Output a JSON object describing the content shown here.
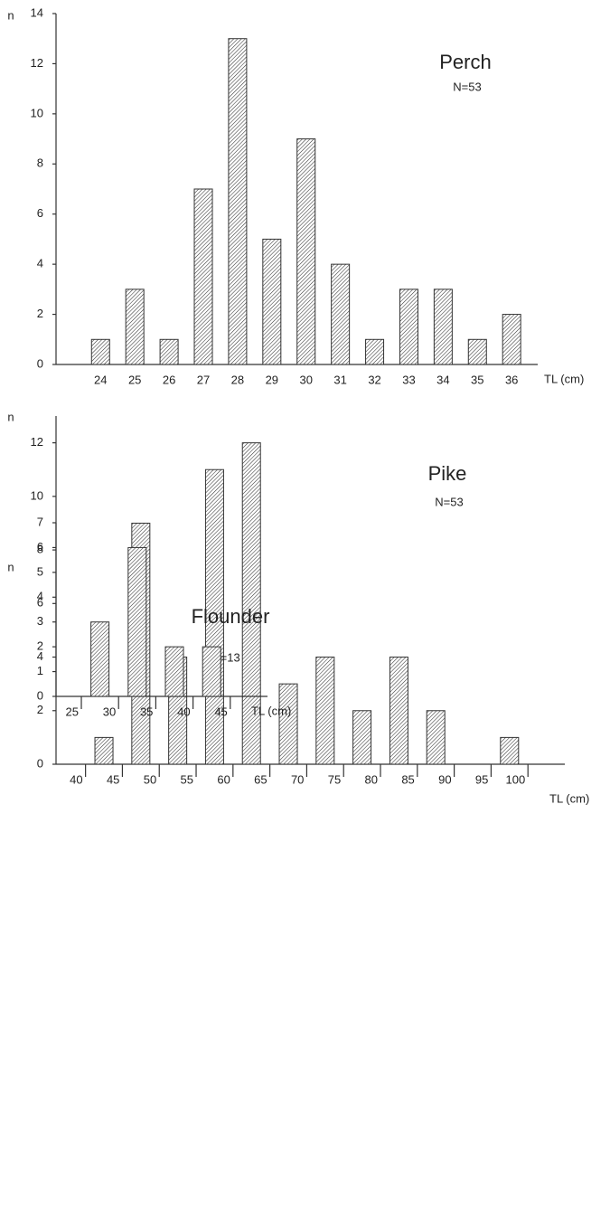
{
  "chart_data": [
    {
      "type": "bar",
      "title": "Perch",
      "subtitle": "N=53",
      "y_label": "n",
      "x_label": "TL (cm)",
      "categories": [
        "24",
        "25",
        "26",
        "27",
        "28",
        "29",
        "30",
        "31",
        "32",
        "33",
        "34",
        "35",
        "36"
      ],
      "values": [
        1,
        3,
        1,
        7,
        13,
        5,
        9,
        4,
        1,
        3,
        3,
        1,
        2
      ],
      "ylim": [
        0,
        14
      ],
      "yticks": [
        0,
        2,
        4,
        6,
        8,
        10,
        12,
        14
      ],
      "color": "#333333"
    },
    {
      "type": "histogram",
      "title": "Pike",
      "subtitle": "N=53",
      "y_label": "n",
      "x_label": "TL (cm)",
      "bins": [
        40,
        45,
        50,
        55,
        60,
        65,
        70,
        75,
        80,
        85,
        90,
        95,
        100
      ],
      "values": [
        1,
        9,
        4,
        11,
        12,
        3,
        4,
        2,
        4,
        2,
        0,
        1
      ],
      "xlim": [
        36,
        105
      ],
      "xticks": [
        40,
        45,
        50,
        55,
        60,
        65,
        70,
        75,
        80,
        85,
        90,
        95,
        100
      ],
      "ylim": [
        0,
        13
      ],
      "yticks": [
        0,
        2,
        4,
        6,
        8,
        10,
        12
      ],
      "color": "#333333"
    },
    {
      "type": "histogram",
      "title": "Flounder",
      "subtitle": "N=13",
      "y_label": "n",
      "x_label": "TL (cm)",
      "bins": [
        25,
        30,
        35,
        40,
        45
      ],
      "values": [
        3,
        6,
        2,
        2
      ],
      "xlim": [
        21.6,
        50
      ],
      "xticks": [
        25,
        30,
        35,
        40,
        45
      ],
      "ylim": [
        0,
        7
      ],
      "yticks": [
        0,
        1,
        2,
        3,
        4,
        5,
        6,
        7
      ],
      "color": "#333333"
    }
  ]
}
